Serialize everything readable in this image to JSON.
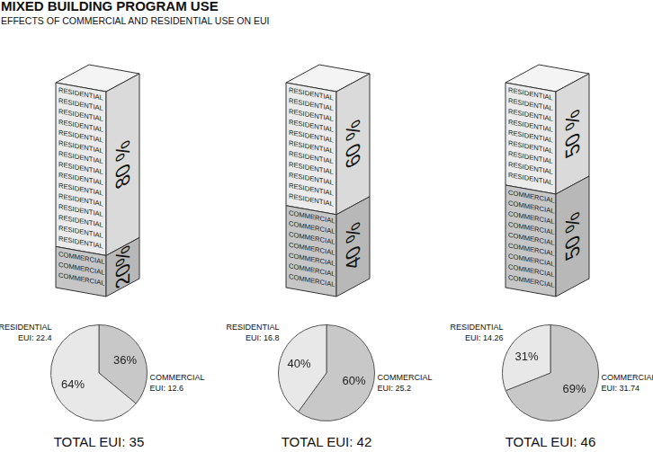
{
  "title": "MIXED BUILDING PROGRAM USE",
  "subtitle": "EFFECTS OF COMMERCIAL AND RESIDENTIAL USE ON EUI",
  "program_blocks": [
    {
      "segments": [
        {
          "label": "RESIDENTIAL",
          "share": 80,
          "share_label": "80 %",
          "color": "#ebebeb"
        },
        {
          "label": "COMMERCIAL",
          "share": 20,
          "share_label": "20%",
          "color": "#c6c6c6"
        }
      ]
    },
    {
      "segments": [
        {
          "label": "RESIDENTIAL",
          "share": 60,
          "share_label": "60 %",
          "color": "#ebebeb"
        },
        {
          "label": "COMMERCIAL",
          "share": 40,
          "share_label": "40 %",
          "color": "#c6c6c6"
        }
      ]
    },
    {
      "segments": [
        {
          "label": "RESIDENTIAL",
          "share": 50,
          "share_label": "50 %",
          "color": "#ebebeb"
        },
        {
          "label": "COMMERCIAL",
          "share": 50,
          "share_label": "50 %",
          "color": "#c6c6c6"
        }
      ]
    }
  ],
  "chart_data": [
    {
      "type": "pie",
      "title": "TOTAL EUI: 35",
      "categories": [
        "COMMERCIAL",
        "RESIDENTIAL"
      ],
      "values": [
        36,
        64
      ],
      "value_labels": [
        "36%",
        "64%"
      ],
      "annotations": [
        "EUI: 12.6",
        "EUI: 22.4"
      ],
      "colors": [
        "#c8c8c8",
        "#e8e8e8"
      ],
      "data_labels": true
    },
    {
      "type": "pie",
      "title": "TOTAL EUI: 42",
      "categories": [
        "COMMERCIAL",
        "RESIDENTIAL"
      ],
      "values": [
        60,
        40
      ],
      "value_labels": [
        "60%",
        "40%"
      ],
      "annotations": [
        "EUI: 25.2",
        "EUI: 16.8"
      ],
      "colors": [
        "#c8c8c8",
        "#e8e8e8"
      ],
      "data_labels": true
    },
    {
      "type": "pie",
      "title": "TOTAL EUI: 46",
      "categories": [
        "COMMERCIAL",
        "RESIDENTIAL"
      ],
      "values": [
        69,
        31
      ],
      "value_labels": [
        "69%",
        "31%"
      ],
      "annotations": [
        "EUI: 31.74",
        "EUI: 14.26"
      ],
      "colors": [
        "#c8c8c8",
        "#e8e8e8"
      ],
      "data_labels": true
    }
  ]
}
